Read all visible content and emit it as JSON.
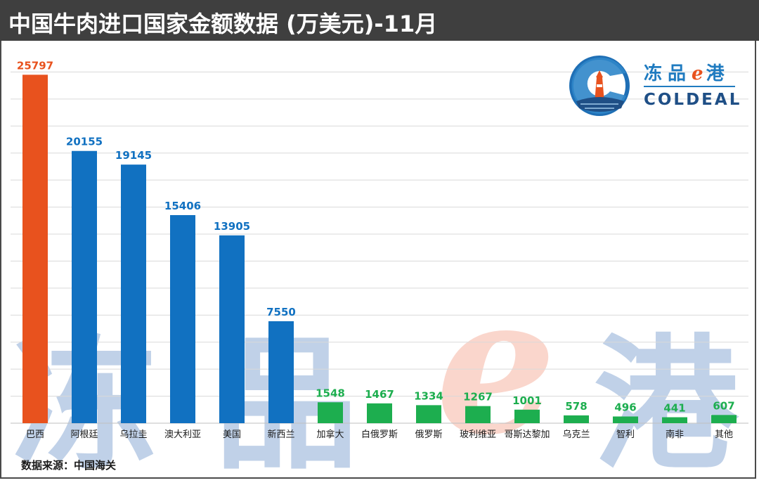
{
  "header": {
    "title": "中国牛肉进口国家金额数据 (万美元)-11月"
  },
  "footer": {
    "source": "数据来源：中国海关"
  },
  "logo": {
    "name_cn": "冻品",
    "name_e": "e",
    "name_cn2": "港",
    "name_en": "COLDEAL",
    "icon": "lighthouse-logo-icon"
  },
  "watermark": {
    "chars": [
      "冻",
      "品",
      "e",
      "港"
    ]
  },
  "colors": {
    "brazil": "#E8521E",
    "top_importers": "#1171C1",
    "others": "#1DAE4F",
    "grid": "#D9D9D9",
    "watermark_blue": "#3A6FB6",
    "watermark_red": "#F08A6C"
  },
  "chart_data": {
    "type": "bar",
    "title": "中国牛肉进口国家金额数据 (万美元)-11月",
    "xlabel": "",
    "ylabel": "",
    "ylim": [
      0,
      28000
    ],
    "grid": true,
    "legend": "none",
    "categories": [
      "巴西",
      "阿根廷",
      "乌拉圭",
      "澳大利亚",
      "美国",
      "新西兰",
      "加拿大",
      "白俄罗斯",
      "俄罗斯",
      "玻利维亚",
      "哥斯达黎加",
      "乌克兰",
      "智利",
      "南非",
      "其他"
    ],
    "values": [
      25797,
      20155,
      19145,
      15406,
      13905,
      7550,
      1548,
      1467,
      1334,
      1267,
      1001,
      578,
      496,
      441,
      607
    ],
    "color_groups": [
      "brazil",
      "top_importers",
      "top_importers",
      "top_importers",
      "top_importers",
      "top_importers",
      "others",
      "others",
      "others",
      "others",
      "others",
      "others",
      "others",
      "others",
      "others"
    ]
  }
}
